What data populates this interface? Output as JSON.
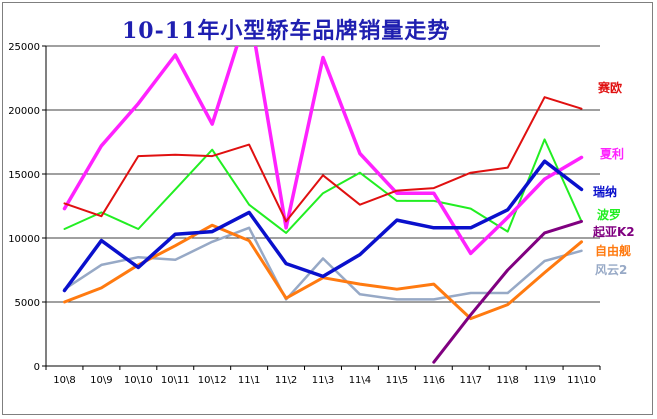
{
  "chart_data": {
    "type": "line",
    "title": "10-11年小型轿车品牌销量走势",
    "xlabel": "",
    "ylabel": "",
    "ylim": [
      0,
      25000
    ],
    "yticks": [
      0,
      5000,
      10000,
      15000,
      20000,
      25000
    ],
    "grid": "horizontal",
    "legend": "right",
    "categories": [
      "10\\8",
      "10\\9",
      "10\\10",
      "10\\11",
      "10\\12",
      "11\\1",
      "11\\2",
      "11\\3",
      "11\\4",
      "11\\5",
      "11\\6",
      "11\\7",
      "11\\8",
      "11\\9",
      "11\\10"
    ],
    "series": [
      {
        "name": "赛欧",
        "color": "#e01010",
        "width": 2,
        "values": [
          12700,
          11700,
          16400,
          16500,
          16400,
          17300,
          11300,
          14900,
          12600,
          13700,
          13900,
          15100,
          15500,
          21000,
          20100
        ]
      },
      {
        "name": "夏利",
        "color": "#ff22ff",
        "width": 3.5,
        "values": [
          12300,
          17200,
          20500,
          24300,
          18900,
          28000,
          10800,
          24100,
          16600,
          13500,
          13500,
          8800,
          11600,
          14600,
          16300
        ]
      },
      {
        "name": "瑞纳",
        "color": "#0a10cc",
        "width": 3.5,
        "values": [
          5900,
          9800,
          7700,
          10300,
          10500,
          12000,
          8000,
          7000,
          8700,
          11400,
          10800,
          10800,
          12200,
          16000,
          13800
        ]
      },
      {
        "name": "波罗",
        "color": "#22ee22",
        "width": 2,
        "values": [
          10700,
          12000,
          10700,
          13800,
          16900,
          12600,
          10400,
          13500,
          15100,
          12900,
          12900,
          12300,
          10500,
          17700,
          11300
        ]
      },
      {
        "name": "起亚K2",
        "color": "#800080",
        "width": 3,
        "values": [
          null,
          null,
          null,
          null,
          null,
          null,
          null,
          null,
          null,
          null,
          300,
          4000,
          7500,
          10400,
          11300
        ]
      },
      {
        "name": "自由舰",
        "color": "#ff7a10",
        "width": 3,
        "values": [
          5000,
          6100,
          7900,
          9400,
          11000,
          9800,
          5300,
          6900,
          6400,
          6000,
          6400,
          3700,
          4800,
          7300,
          9700
        ]
      },
      {
        "name": "风云2",
        "color": "#97a9c6",
        "width": 2.5,
        "values": [
          6000,
          7900,
          8500,
          8300,
          9700,
          10800,
          5200,
          8400,
          5600,
          5200,
          5200,
          5700,
          5700,
          8200,
          9000
        ]
      }
    ]
  }
}
